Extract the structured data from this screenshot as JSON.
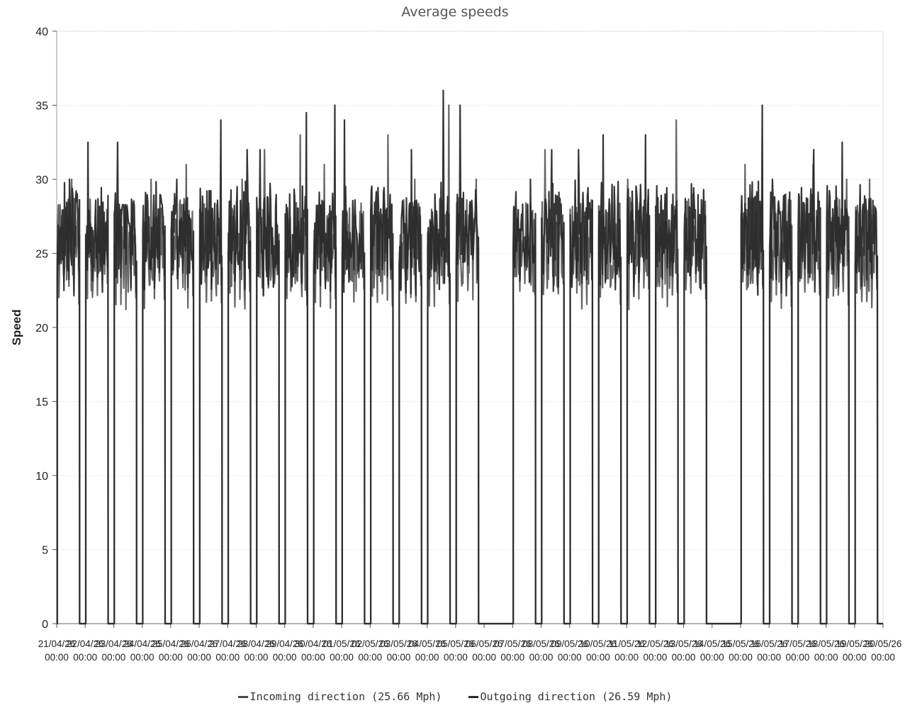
{
  "chart_data": {
    "type": "line",
    "title": "Average speeds",
    "ylabel": "Speed",
    "xlabel": "",
    "ylim": [
      0,
      40
    ],
    "yticks": [
      0,
      5,
      10,
      15,
      20,
      25,
      30,
      35,
      40
    ],
    "grid": true,
    "legend_position": "bottom",
    "x_tick_labels": [
      "21/04/26 00:00",
      "22/04/26 00:00",
      "23/04/26 00:00",
      "24/04/26 00:00",
      "25/04/26 00:00",
      "26/04/26 00:00",
      "27/04/26 00:00",
      "28/04/26 00:00",
      "29/04/26 00:00",
      "30/04/26 00:00",
      "01/05/26 00:00",
      "02/05/26 00:00",
      "03/05/26 00:00",
      "04/05/26 00:00",
      "05/05/26 00:00",
      "06/05/26 00:00",
      "07/05/26 00:00",
      "08/05/26 00:00",
      "09/05/26 00:00",
      "10/05/26 00:00",
      "11/05/26 00:00",
      "12/05/26 00:00",
      "13/05/26 00:00",
      "14/05/26 00:00",
      "15/05/26 00:00",
      "16/05/26 00:00",
      "17/05/26 00:00",
      "18/05/26 00:00",
      "19/05/26 00:00",
      "20/05/26 00:00"
    ],
    "series": [
      {
        "name": "Incoming direction (25.66 Mph)",
        "color": "#4a4a4a",
        "approx_typical_day_value": 25.7,
        "daily_peaks": [
          30,
          29,
          34,
          30,
          31,
          32,
          30,
          32,
          33,
          31,
          30,
          33,
          30,
          35,
          30,
          0,
          27,
          32,
          29,
          30,
          30,
          34,
          29,
          0,
          31,
          29,
          31,
          30,
          30,
          31
        ],
        "overnight_value": 0,
        "no_data_days": [
          "06/05/26",
          "14/05/26"
        ]
      },
      {
        "name": "Outgoing direction (26.59 Mph)",
        "color": "#2a2a2a",
        "approx_typical_day_value": 26.6,
        "daily_peaks": [
          30,
          32.5,
          32.5,
          34,
          30,
          34,
          32,
          32,
          34.5,
          35,
          34,
          31,
          32,
          36,
          35,
          0,
          30,
          32,
          32,
          33,
          33,
          35,
          38,
          0,
          35,
          30,
          32,
          32.5,
          33,
          31
        ],
        "overnight_value": 0,
        "no_data_days": [
          "06/05/26",
          "14/05/26"
        ]
      }
    ]
  },
  "legend": {
    "incoming_label": "Incoming direction (25.66 Mph)",
    "outgoing_label": "Outgoing direction (26.59 Mph)"
  }
}
